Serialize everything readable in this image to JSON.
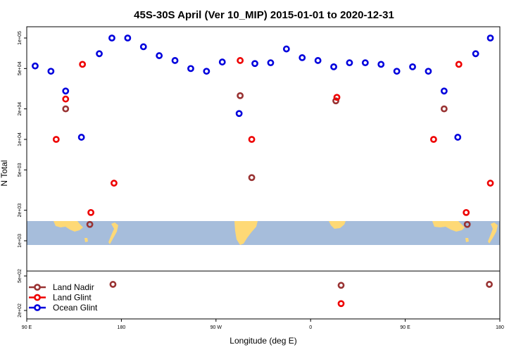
{
  "chart_data": {
    "type": "scatter",
    "title": "45S-30S April (Ver 10_MIP)   2015-01-01 to 2020-12-31",
    "xlabel": "Longitude (deg E)",
    "ylabel": "N Total",
    "x_axis": {
      "scale": "linear",
      "range_deg": [
        90,
        540
      ],
      "ticks": [
        {
          "value": 90,
          "label": "90 E"
        },
        {
          "value": 180,
          "label": "180"
        },
        {
          "value": 270,
          "label": "90 W"
        },
        {
          "value": 360,
          "label": "0"
        },
        {
          "value": 450,
          "label": "90 E"
        },
        {
          "value": 540,
          "label": "180"
        }
      ]
    },
    "y_axis": {
      "scale": "log",
      "upper_panel": {
        "range": [
          1000,
          120000
        ],
        "ticks": [
          {
            "value": 1000,
            "label": "1e+03"
          },
          {
            "value": 2000,
            "label": "2e+03"
          },
          {
            "value": 5000,
            "label": "5e+03"
          },
          {
            "value": 10000,
            "label": "1e+04"
          },
          {
            "value": 20000,
            "label": "2e+04"
          },
          {
            "value": 50000,
            "label": "5e+04"
          },
          {
            "value": 100000,
            "label": "1e+05"
          }
        ]
      },
      "lower_panel": {
        "range": [
          170,
          550
        ],
        "ticks": [
          {
            "value": 200,
            "label": "2e+02"
          },
          {
            "value": 500,
            "label": "5e+02"
          }
        ]
      }
    },
    "map_strip": {
      "ocean_color": "#a6bddb",
      "land_color": "#fed976"
    },
    "legend_position": "bottom-left",
    "series": [
      {
        "name": "Land Nadir",
        "color": "#993333",
        "points": [
          {
            "x": 127,
            "y": 20000
          },
          {
            "x": 150,
            "y": 1450
          },
          {
            "x": 172,
            "y": 400
          },
          {
            "x": 293,
            "y": 27000
          },
          {
            "x": 304,
            "y": 4200
          },
          {
            "x": 384,
            "y": 24000
          },
          {
            "x": 389,
            "y": 390
          },
          {
            "x": 487,
            "y": 20000
          },
          {
            "x": 509,
            "y": 1450
          },
          {
            "x": 530,
            "y": 400
          }
        ]
      },
      {
        "name": "Land Glint",
        "color": "#ee0000",
        "points": [
          {
            "x": 118,
            "y": 10000
          },
          {
            "x": 127,
            "y": 25000
          },
          {
            "x": 143,
            "y": 55000
          },
          {
            "x": 151,
            "y": 1900
          },
          {
            "x": 173,
            "y": 3700
          },
          {
            "x": 293,
            "y": 60000
          },
          {
            "x": 304,
            "y": 10000
          },
          {
            "x": 385,
            "y": 26000
          },
          {
            "x": 389,
            "y": 240
          },
          {
            "x": 477,
            "y": 10000
          },
          {
            "x": 501,
            "y": 55000
          },
          {
            "x": 508,
            "y": 1900
          },
          {
            "x": 531,
            "y": 3700
          }
        ]
      },
      {
        "name": "Ocean Glint",
        "color": "#0000dd",
        "points": [
          {
            "x": 98,
            "y": 53000
          },
          {
            "x": 113,
            "y": 47000
          },
          {
            "x": 127,
            "y": 30000
          },
          {
            "x": 142,
            "y": 10500
          },
          {
            "x": 159,
            "y": 70000
          },
          {
            "x": 171,
            "y": 100000
          },
          {
            "x": 186,
            "y": 100000
          },
          {
            "x": 201,
            "y": 82000
          },
          {
            "x": 216,
            "y": 67000
          },
          {
            "x": 231,
            "y": 60000
          },
          {
            "x": 246,
            "y": 50000
          },
          {
            "x": 261,
            "y": 47000
          },
          {
            "x": 276,
            "y": 58000
          },
          {
            "x": 292,
            "y": 18000
          },
          {
            "x": 307,
            "y": 56000
          },
          {
            "x": 322,
            "y": 57000
          },
          {
            "x": 337,
            "y": 78000
          },
          {
            "x": 352,
            "y": 64000
          },
          {
            "x": 367,
            "y": 60000
          },
          {
            "x": 382,
            "y": 52000
          },
          {
            "x": 397,
            "y": 57000
          },
          {
            "x": 412,
            "y": 57000
          },
          {
            "x": 427,
            "y": 55000
          },
          {
            "x": 442,
            "y": 47000
          },
          {
            "x": 457,
            "y": 52000
          },
          {
            "x": 472,
            "y": 47000
          },
          {
            "x": 487,
            "y": 30000
          },
          {
            "x": 500,
            "y": 10500
          },
          {
            "x": 517,
            "y": 70000
          },
          {
            "x": 531,
            "y": 100000
          }
        ]
      }
    ]
  }
}
